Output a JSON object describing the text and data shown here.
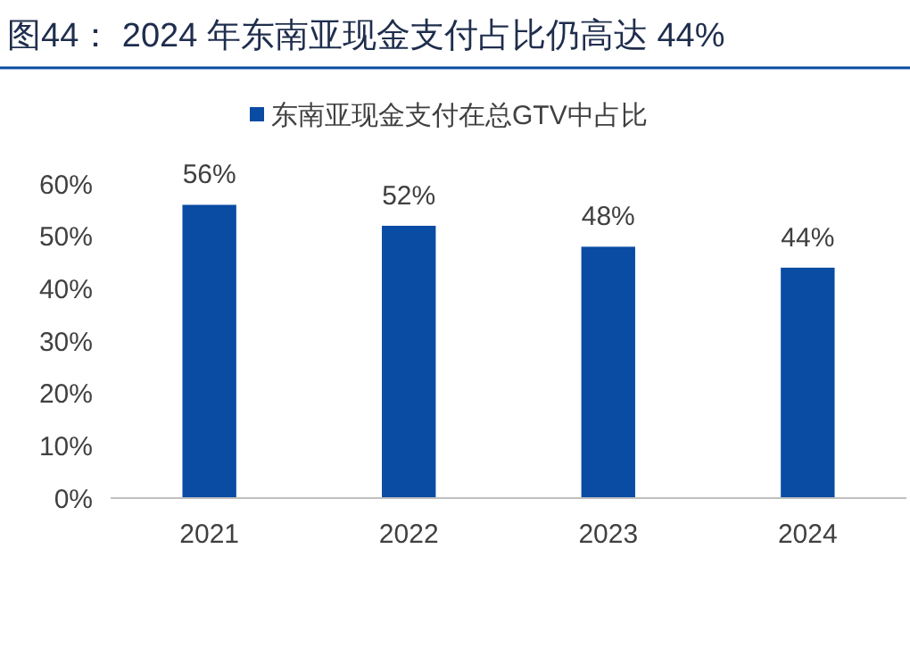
{
  "chart_data": {
    "type": "bar",
    "title": "图44：   2024 年东南亚现金支付占比仍高达 44%",
    "categories": [
      "2021",
      "2022",
      "2023",
      "2024"
    ],
    "series": [
      {
        "name": "东南亚现金支付在总GTV中占比",
        "color": "#0a4ba3",
        "values": [
          56,
          52,
          48,
          44
        ],
        "value_labels": [
          "56%",
          "52%",
          "48%",
          "44%"
        ]
      }
    ],
    "ylim": [
      0,
      60
    ],
    "yticks": [
      {
        "value": 0,
        "label": "0%"
      },
      {
        "value": 10,
        "label": "10%"
      },
      {
        "value": 20,
        "label": "20%"
      },
      {
        "value": 30,
        "label": "30%"
      },
      {
        "value": 40,
        "label": "40%"
      },
      {
        "value": 50,
        "label": "50%"
      },
      {
        "value": 60,
        "label": "60%"
      }
    ],
    "grid": false,
    "legend": "top"
  }
}
